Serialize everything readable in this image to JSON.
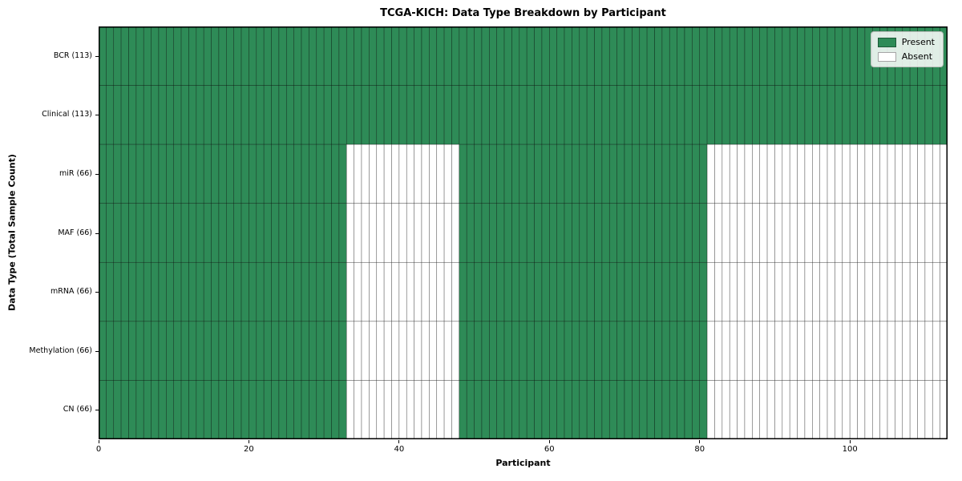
{
  "chart_data": {
    "type": "heatmap",
    "title": "TCGA-KICH: Data Type Breakdown by Participant",
    "xlabel": "Participant",
    "ylabel": "Data Type (Total Sample Count)",
    "n_participants": 113,
    "x_ticks": [
      0,
      20,
      40,
      60,
      80,
      100
    ],
    "rows": [
      {
        "label": "BCR (113)",
        "total": 113,
        "present_ranges": [
          [
            0,
            113
          ]
        ],
        "absent_ranges": []
      },
      {
        "label": "Clinical (113)",
        "total": 113,
        "present_ranges": [
          [
            0,
            113
          ]
        ],
        "absent_ranges": []
      },
      {
        "label": "miR (66)",
        "total": 66,
        "present_ranges": [
          [
            0,
            33
          ],
          [
            48,
            81
          ]
        ],
        "absent_ranges": [
          [
            33,
            48
          ],
          [
            81,
            113
          ]
        ]
      },
      {
        "label": "MAF (66)",
        "total": 66,
        "present_ranges": [
          [
            0,
            33
          ],
          [
            48,
            81
          ]
        ],
        "absent_ranges": [
          [
            33,
            48
          ],
          [
            81,
            113
          ]
        ]
      },
      {
        "label": "mRNA (66)",
        "total": 66,
        "present_ranges": [
          [
            0,
            33
          ],
          [
            48,
            81
          ]
        ],
        "absent_ranges": [
          [
            33,
            48
          ],
          [
            81,
            113
          ]
        ]
      },
      {
        "label": "Methylation (66)",
        "total": 66,
        "present_ranges": [
          [
            0,
            33
          ],
          [
            48,
            81
          ]
        ],
        "absent_ranges": [
          [
            33,
            48
          ],
          [
            81,
            113
          ]
        ]
      },
      {
        "label": "CN (66)",
        "total": 66,
        "present_ranges": [
          [
            0,
            33
          ],
          [
            48,
            81
          ]
        ],
        "absent_ranges": [
          [
            33,
            48
          ],
          [
            81,
            113
          ]
        ]
      }
    ],
    "legend": {
      "position": "upper right",
      "entries": [
        {
          "label": "Present",
          "color": "#2e8b57"
        },
        {
          "label": "Absent",
          "color": "#ffffff"
        }
      ]
    },
    "colors": {
      "present": "#2e8b57",
      "absent": "#ffffff",
      "cell_edge": "rgba(0,0,0,0.5)",
      "plot_border": "#000000"
    },
    "grid": false
  }
}
